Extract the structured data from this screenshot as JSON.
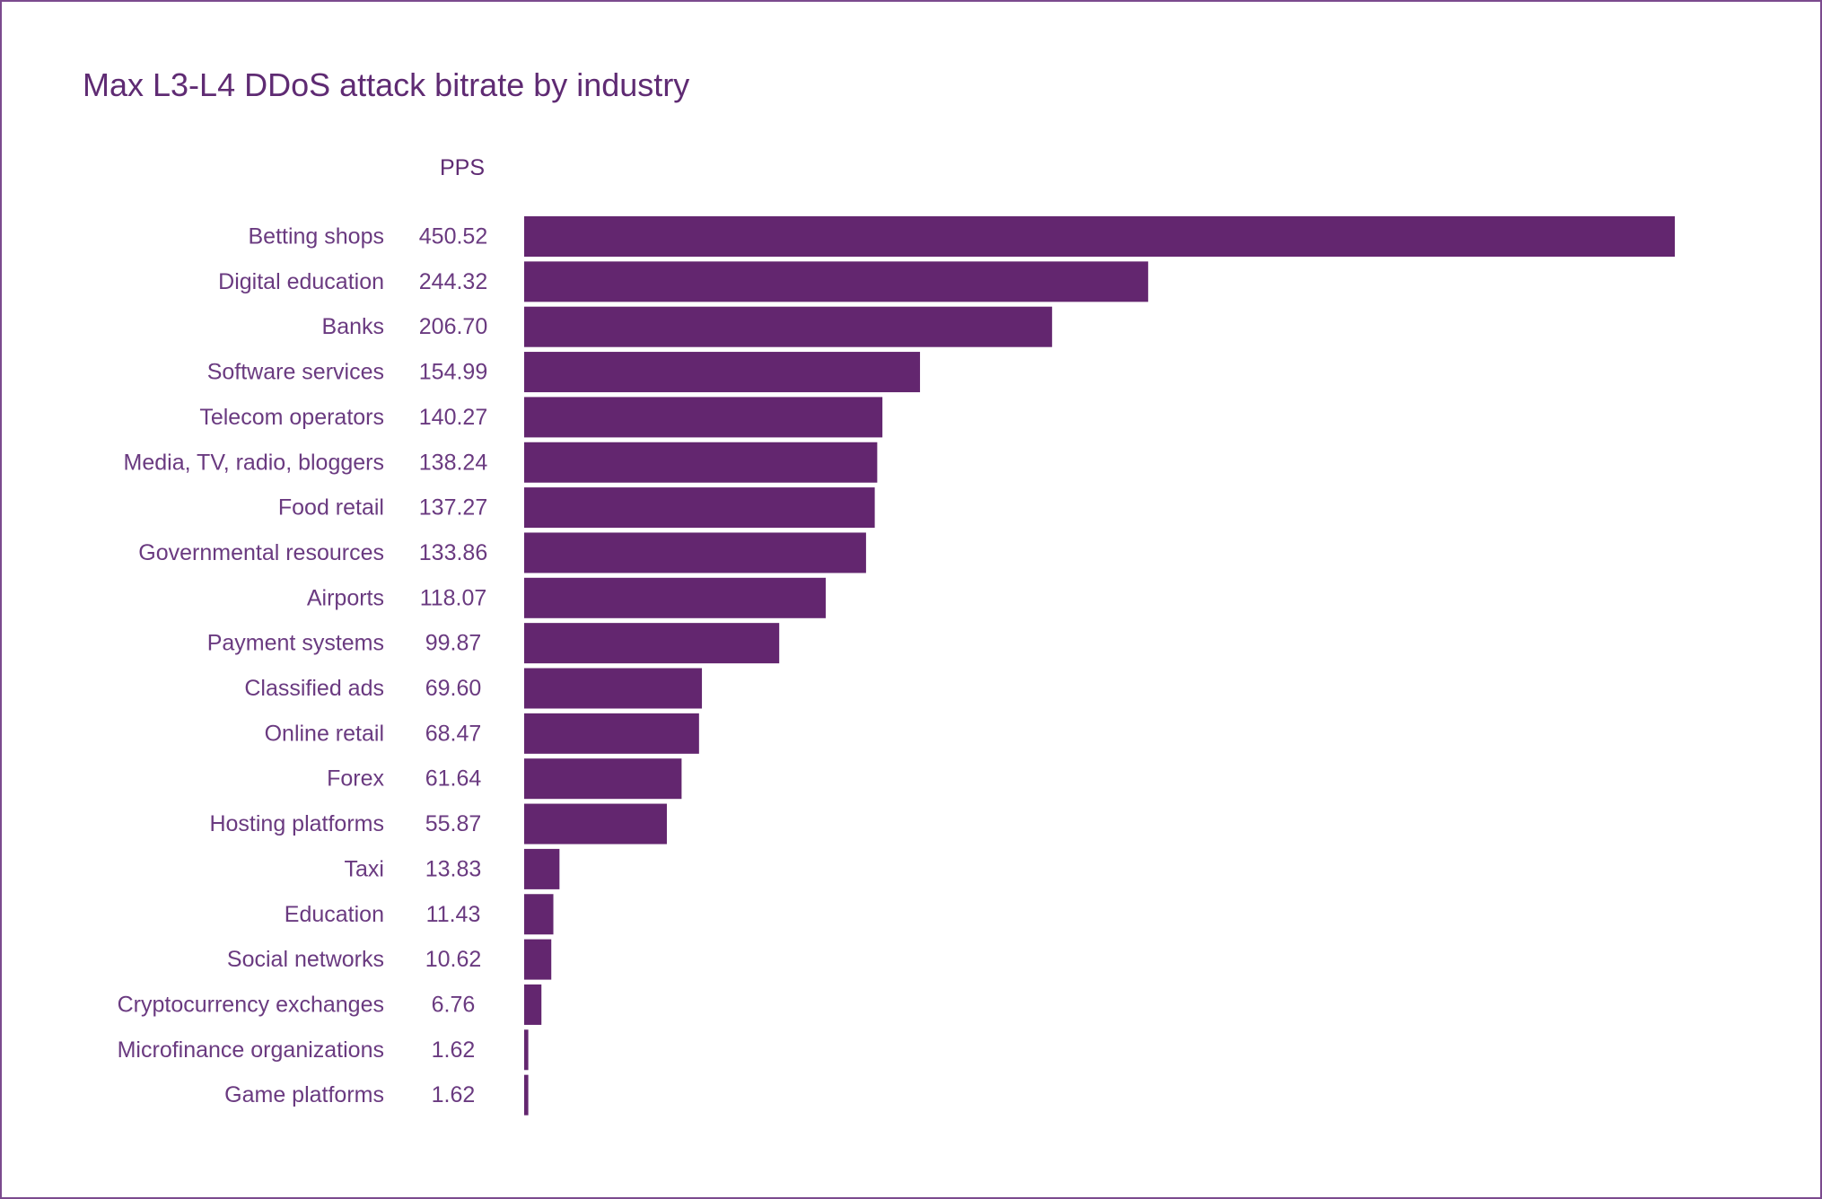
{
  "chart_data": {
    "type": "bar",
    "orientation": "horizontal",
    "title": "Max L3-L4 DDoS attack bitrate by industry",
    "value_column_header": "PPS",
    "categories": [
      "Betting shops",
      "Digital education",
      "Banks",
      "Software services",
      "Telecom operators",
      "Media, TV, radio, bloggers",
      "Food retail",
      "Governmental resources",
      "Airports",
      "Payment systems",
      "Classified ads",
      "Online retail",
      "Forex",
      "Hosting platforms",
      "Taxi",
      "Education",
      "Social networks",
      "Cryptocurrency exchanges",
      "Microfinance organizations",
      "Game platforms"
    ],
    "values": [
      450.52,
      244.32,
      206.7,
      154.99,
      140.27,
      138.24,
      137.27,
      133.86,
      118.07,
      99.87,
      69.6,
      68.47,
      61.64,
      55.87,
      13.83,
      11.43,
      10.62,
      6.76,
      1.62,
      1.62
    ],
    "value_labels": [
      "450.52",
      "244.32",
      "206.70",
      "154.99",
      "140.27",
      "138.24",
      "137.27",
      "133.86",
      "118.07",
      "99.87",
      "69.60",
      "68.47",
      "61.64",
      "55.87",
      "13.83",
      "11.43",
      "10.62",
      "6.76",
      "1.62",
      "1.62"
    ],
    "xlim": [
      0,
      450.52
    ],
    "grid": false,
    "legend": "none",
    "bar_color": "#63266f",
    "text_color": "#6a3a80",
    "border_color": "#7b4a8e"
  }
}
